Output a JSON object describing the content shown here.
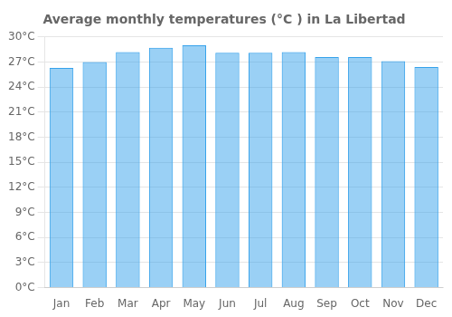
{
  "chart_data": {
    "type": "bar",
    "title": "Average monthly temperatures (°C ) in La Libertad",
    "categories": [
      "Jan",
      "Feb",
      "Mar",
      "Apr",
      "May",
      "Jun",
      "Jul",
      "Aug",
      "Sep",
      "Oct",
      "Nov",
      "Dec"
    ],
    "values": [
      26.3,
      27.0,
      28.2,
      28.7,
      29.0,
      28.1,
      28.1,
      28.2,
      27.6,
      27.6,
      27.1,
      26.4
    ],
    "ylim": [
      0,
      30
    ],
    "yticks": [
      {
        "value": 0,
        "label": "0°C"
      },
      {
        "value": 3,
        "label": "3°C"
      },
      {
        "value": 6,
        "label": "6°C"
      },
      {
        "value": 9,
        "label": "9°C"
      },
      {
        "value": 12,
        "label": "12°C"
      },
      {
        "value": 15,
        "label": "15°C"
      },
      {
        "value": 18,
        "label": "18°C"
      },
      {
        "value": 21,
        "label": "21°C"
      },
      {
        "value": 24,
        "label": "24°C"
      },
      {
        "value": 27,
        "label": "27°C"
      },
      {
        "value": 30,
        "label": "30°C"
      }
    ],
    "grid": true
  }
}
